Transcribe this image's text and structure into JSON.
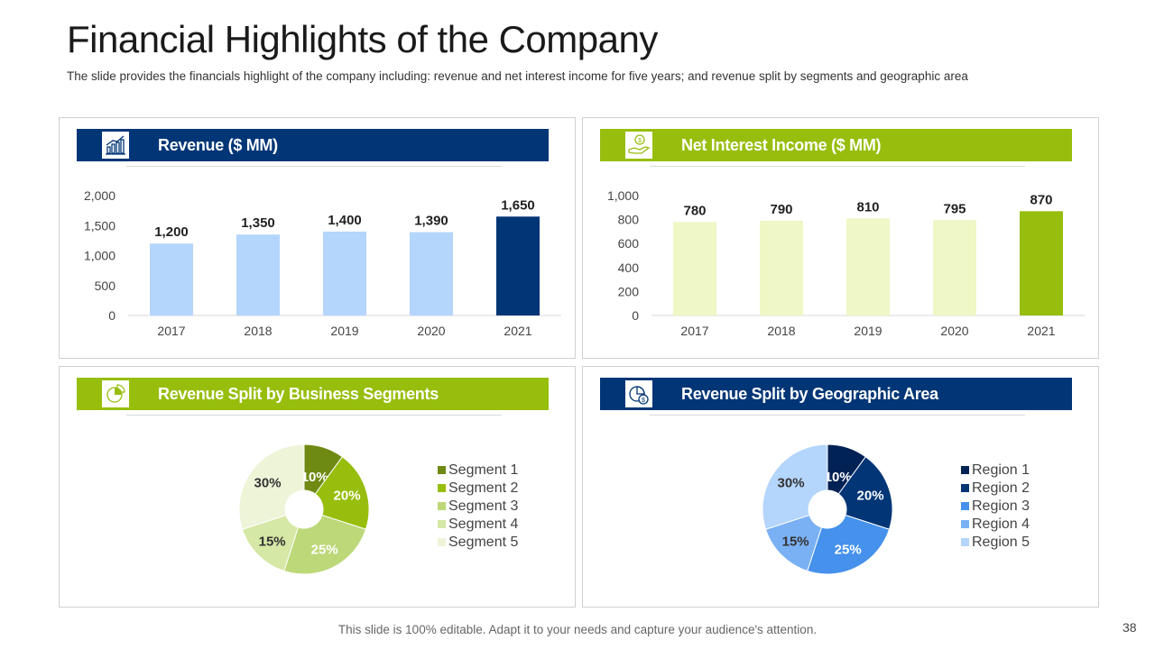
{
  "title": "Financial Highlights of the Company",
  "subtitle": "The slide provides the financials highlight of the company including: revenue and net interest income for five years; and revenue split by segments and geographic area",
  "footer": "This slide is 100% editable. Adapt it to your needs and capture your audience's attention.",
  "page_number": "38",
  "panels": {
    "revenue": {
      "heading": "Revenue ($ MM)",
      "header_color": "#003576",
      "icon": "chart-growth-icon"
    },
    "nii": {
      "heading": "Net Interest Income ($ MM)",
      "header_color": "#97BE0D",
      "icon": "money-hand-icon"
    },
    "segments": {
      "heading": "Revenue Split by Business Segments",
      "header_color": "#97BE0D",
      "icon": "pie-chart-icon"
    },
    "geo": {
      "heading": "Revenue Split by Geographic Area",
      "header_color": "#003576",
      "icon": "pie-chart-dollar-icon"
    }
  },
  "chart_data": [
    {
      "type": "bar",
      "title": "Revenue ($ MM)",
      "categories": [
        "2017",
        "2018",
        "2019",
        "2020",
        "2021"
      ],
      "values": [
        1200,
        1350,
        1400,
        1390,
        1650
      ],
      "value_labels": [
        "1,200",
        "1,350",
        "1,400",
        "1,390",
        "1,650"
      ],
      "ylim": [
        0,
        2000
      ],
      "yticks": [
        0,
        500,
        1000,
        1500,
        2000
      ],
      "ytick_labels": [
        "0",
        "500",
        "1,000",
        "1,500",
        "2,000"
      ],
      "colors": [
        "#B4D5FC",
        "#B4D5FC",
        "#B4D5FC",
        "#B4D5FC",
        "#003576"
      ]
    },
    {
      "type": "bar",
      "title": "Net Interest Income ($ MM)",
      "categories": [
        "2017",
        "2018",
        "2019",
        "2020",
        "2021"
      ],
      "values": [
        780,
        790,
        810,
        795,
        870
      ],
      "value_labels": [
        "780",
        "790",
        "810",
        "795",
        "870"
      ],
      "ylim": [
        0,
        1000
      ],
      "yticks": [
        0,
        200,
        400,
        600,
        800,
        1000
      ],
      "ytick_labels": [
        "0",
        "200",
        "400",
        "600",
        "800",
        "1,000"
      ],
      "colors": [
        "#EEF7C5",
        "#EEF7C5",
        "#EEF7C5",
        "#EEF7C5",
        "#97BE0D"
      ]
    },
    {
      "type": "pie",
      "title": "Revenue Split by Business Segments",
      "labels": [
        "Segment 1",
        "Segment 2",
        "Segment 3",
        "Segment 4",
        "Segment 5"
      ],
      "values": [
        10,
        20,
        25,
        15,
        30
      ],
      "value_labels": [
        "10%",
        "20%",
        "25%",
        "15%",
        "30%"
      ],
      "colors": [
        "#6E8A13",
        "#97BE0D",
        "#BCD878",
        "#D6E8A6",
        "#EEF4D8"
      ],
      "legend": "right"
    },
    {
      "type": "pie",
      "title": "Revenue Split by Geographic Area",
      "labels": [
        "Region 1",
        "Region 2",
        "Region 3",
        "Region 4",
        "Region 5"
      ],
      "values": [
        10,
        20,
        25,
        15,
        30
      ],
      "value_labels": [
        "10%",
        "20%",
        "25%",
        "15%",
        "30%"
      ],
      "colors": [
        "#002254",
        "#003576",
        "#4591EC",
        "#7AB1F4",
        "#B4D5FC"
      ],
      "legend": "right"
    }
  ]
}
